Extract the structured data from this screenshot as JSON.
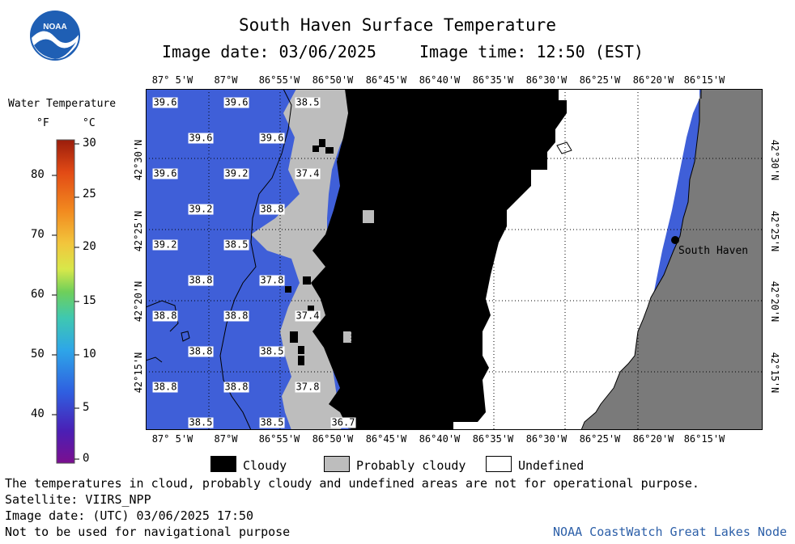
{
  "header": {
    "title": "South Haven Surface Temperature",
    "image_date": "Image date: 03/06/2025",
    "image_time": "Image time: 12:50 (EST)"
  },
  "logo": {
    "text": "NOAA"
  },
  "legend": {
    "title": "Water Temperature",
    "unit_f": "°F",
    "unit_c": "°C",
    "f_ticks": [
      "80",
      "70",
      "60",
      "50",
      "40"
    ],
    "c_ticks": [
      "30",
      "25",
      "20",
      "15",
      "10",
      "5",
      "0"
    ]
  },
  "axes": {
    "top_labels": [
      "87° 5'W",
      "87°W",
      "86°55'W",
      "86°50'W",
      "86°45'W",
      "86°40'W",
      "86°35'W",
      "86°30'W",
      "86°25'W",
      "86°20'W",
      "86°15'W"
    ],
    "bottom_labels": [
      "87° 5'W",
      "87°W",
      "86°55'W",
      "86°50'W",
      "86°45'W",
      "86°40'W",
      "86°35'W",
      "86°30'W",
      "86°25'W",
      "86°20'W",
      "86°15'W"
    ],
    "left_labels": [
      "42°30'N",
      "42°25'N",
      "42°20'N",
      "42°15'N"
    ],
    "right_labels": [
      "42°30'N",
      "42°25'N",
      "42°20'N",
      "42°15'N"
    ]
  },
  "map": {
    "place_name": "South Haven",
    "temperature_labels": [
      {
        "text": "39.6"
      },
      {
        "text": "39.6"
      },
      {
        "text": "38.5"
      },
      {
        "text": "39.6"
      },
      {
        "text": "39.6"
      },
      {
        "text": "39.6"
      },
      {
        "text": "39.2"
      },
      {
        "text": "37.4"
      },
      {
        "text": "39.2"
      },
      {
        "text": "38.8"
      },
      {
        "text": "39.2"
      },
      {
        "text": "38.5"
      },
      {
        "text": "38.8"
      },
      {
        "text": "37.8"
      },
      {
        "text": "38.8"
      },
      {
        "text": "38.8"
      },
      {
        "text": "37.4"
      },
      {
        "text": "38.8"
      },
      {
        "text": "38.5"
      },
      {
        "text": "38.8"
      },
      {
        "text": "38.8"
      },
      {
        "text": "37.8"
      },
      {
        "text": "38.5"
      },
      {
        "text": "38.5"
      },
      {
        "text": "36.7"
      }
    ]
  },
  "key": {
    "cloudy": "Cloudy",
    "probably_cloudy": "Probably cloudy",
    "undefined": "Undefined"
  },
  "footer": {
    "note": "The temperatures in cloud, probably cloudy and undefined areas are not for operational purpose.",
    "satellite": "Satellite: VIIRS_NPP",
    "utc_date": "Image date: (UTC) 03/06/2025  17:50",
    "nav_warning": "Not to be used for navigational purpose",
    "credit": "NOAA CoastWatch Great Lakes Node"
  },
  "colors": {
    "water": "#3f5fd8",
    "cloud": "#000000",
    "probably_cloud": "#bdbdbd",
    "undefined": "#ffffff",
    "land": "#7a7a7a",
    "credit": "#2c5fa8"
  }
}
